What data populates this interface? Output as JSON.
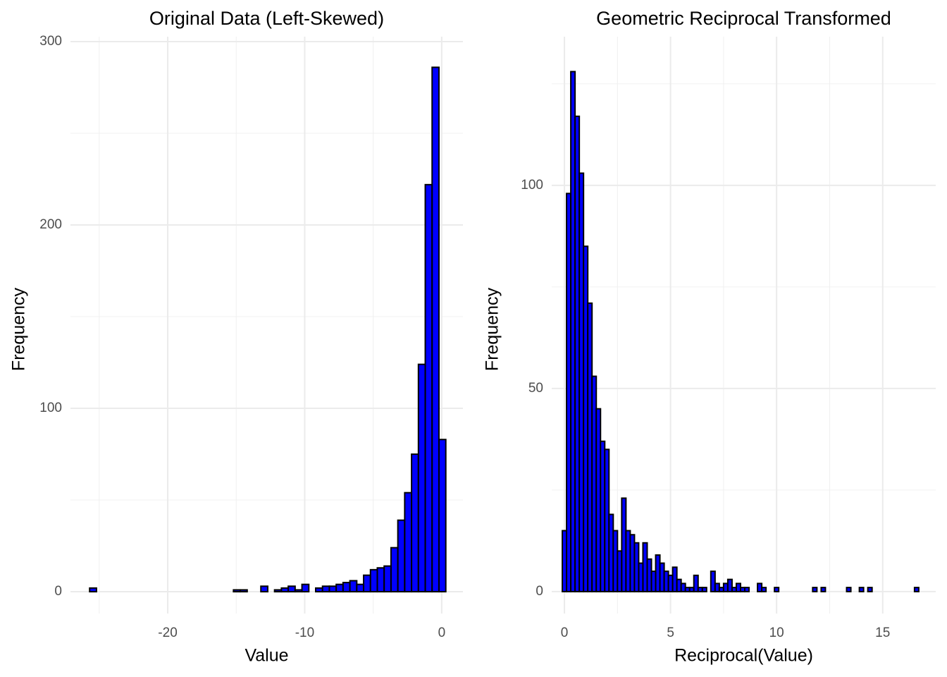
{
  "chart_data": [
    {
      "type": "histogram",
      "title": "Original Data (Left-Skewed)",
      "x_label": "Value",
      "y_label": "Frequency",
      "bins": [
        -25.7,
        -25.2,
        -24.7,
        -24.2,
        -23.7,
        -23.2,
        -22.7,
        -22.2,
        -21.7,
        -21.2,
        -20.7,
        -20.2,
        -19.7,
        -19.2,
        -18.7,
        -18.2,
        -17.7,
        -17.2,
        -16.7,
        -16.2,
        -15.7,
        -15.2,
        -14.7,
        -14.2,
        -13.7,
        -13.2,
        -12.7,
        -12.2,
        -11.7,
        -11.2,
        -10.7,
        -10.2,
        -9.7,
        -9.2,
        -8.7,
        -8.2,
        -7.7,
        -7.2,
        -6.7,
        -6.2,
        -5.7,
        -5.2,
        -4.7,
        -4.2,
        -3.7,
        -3.2,
        -2.7,
        -2.2,
        -1.7,
        -1.2,
        -0.7,
        -0.2,
        0.3
      ],
      "values": [
        2,
        0,
        0,
        0,
        0,
        0,
        0,
        0,
        0,
        0,
        0,
        0,
        0,
        0,
        0,
        0,
        0,
        0,
        0,
        0,
        0,
        1,
        1,
        0,
        0,
        3,
        0,
        1,
        2,
        3,
        1,
        4,
        0,
        2,
        3,
        3,
        4,
        5,
        6,
        4,
        9,
        12,
        13,
        14,
        24,
        39,
        54,
        75,
        124,
        222,
        286,
        83
      ],
      "color": "#0000ff",
      "edge_color": "#000000",
      "xlim": [
        -27.1,
        1.55
      ],
      "xticks": [
        -20,
        -10,
        0
      ],
      "xminor": [
        -25,
        -15,
        -5
      ],
      "ylim": [
        -11.9,
        302.7
      ],
      "yticks": [
        0,
        100,
        200,
        300
      ],
      "yminor": [
        50,
        150,
        250
      ],
      "grid": true
    },
    {
      "type": "histogram",
      "title": "Geometric Reciprocal Transformed",
      "x_label": "Reciprocal(Value)",
      "y_label": "Frequency",
      "bins": [
        -0.1,
        0.1,
        0.3,
        0.5,
        0.7,
        0.9,
        1.1,
        1.3,
        1.5,
        1.7,
        1.9,
        2.1,
        2.3,
        2.5,
        2.7,
        2.9,
        3.1,
        3.3,
        3.5,
        3.7,
        3.9,
        4.1,
        4.3,
        4.5,
        4.7,
        4.9,
        5.1,
        5.3,
        5.5,
        5.7,
        5.9,
        6.1,
        6.3,
        6.5,
        6.7,
        6.9,
        7.1,
        7.3,
        7.5,
        7.7,
        7.9,
        8.1,
        8.3,
        8.5,
        8.7,
        8.9,
        9.1,
        9.3,
        9.5,
        9.7,
        9.9,
        10.1,
        10.3,
        10.5,
        10.7,
        10.9,
        11.1,
        11.3,
        11.5,
        11.7,
        11.9,
        12.1,
        12.3,
        12.5,
        12.7,
        12.9,
        13.1,
        13.3,
        13.5,
        13.7,
        13.9,
        14.1,
        14.3,
        14.5,
        14.7,
        14.9,
        15.1,
        15.3,
        15.5,
        15.7,
        15.9,
        16.1,
        16.3,
        16.5,
        16.7
      ],
      "values": [
        15,
        98,
        128,
        117,
        103,
        85,
        71,
        53,
        45,
        37,
        35,
        19,
        15,
        10,
        23,
        15,
        14,
        12,
        7,
        12,
        8,
        5,
        9,
        7,
        5,
        4,
        6,
        3,
        2,
        1,
        1,
        4,
        1,
        1,
        0,
        5,
        2,
        1,
        2,
        3,
        1,
        2,
        1,
        1,
        0,
        0,
        2,
        1,
        0,
        0,
        1,
        0,
        0,
        0,
        0,
        0,
        0,
        0,
        0,
        1,
        0,
        1,
        0,
        0,
        0,
        0,
        0,
        1,
        0,
        0,
        1,
        0,
        1,
        0,
        0,
        0,
        0,
        0,
        0,
        0,
        0,
        0,
        0,
        1
      ],
      "color": "#0000ff",
      "edge_color": "#000000",
      "xlim": [
        -0.6,
        17.5
      ],
      "xticks": [
        0,
        5,
        10,
        15
      ],
      "xminor": [
        2.5,
        7.5,
        12.5
      ],
      "ylim": [
        -5.4,
        136.6
      ],
      "yticks": [
        0,
        50,
        100
      ],
      "yminor": [
        25,
        75,
        125
      ],
      "grid": true
    }
  ]
}
